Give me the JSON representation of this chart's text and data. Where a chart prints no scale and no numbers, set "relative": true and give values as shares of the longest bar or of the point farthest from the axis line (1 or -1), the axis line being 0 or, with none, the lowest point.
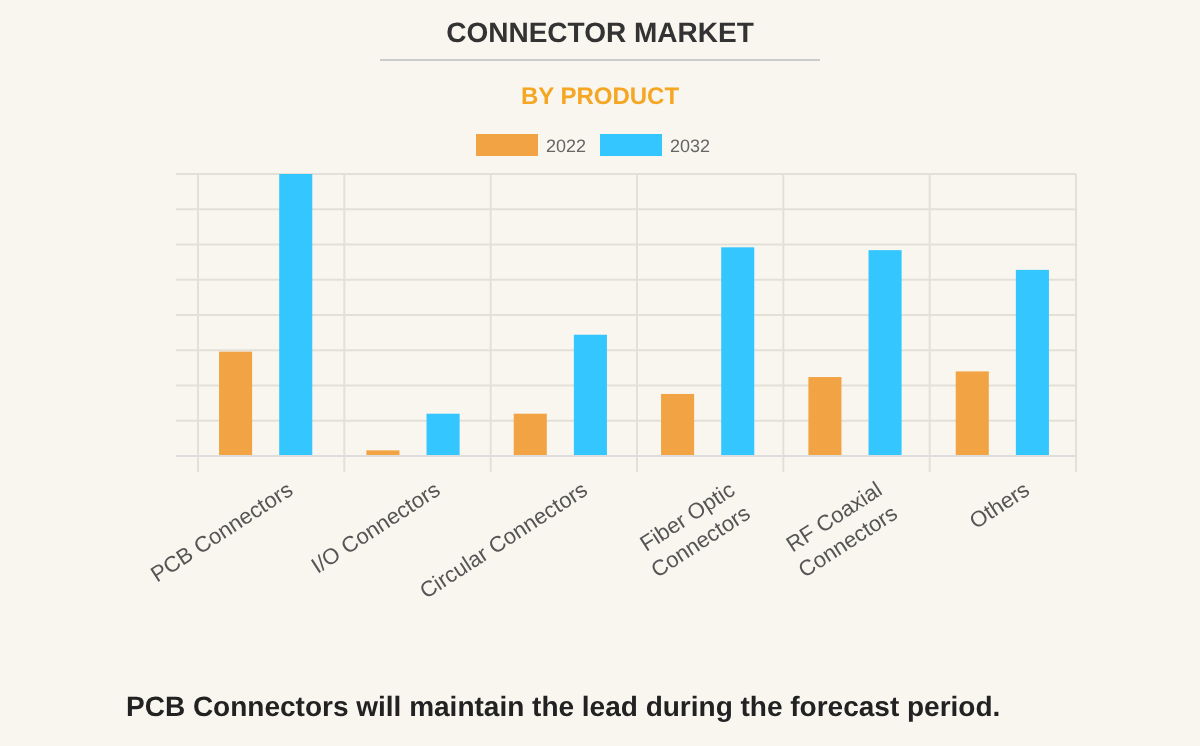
{
  "chart_data": {
    "type": "bar",
    "title": "CONNECTOR MARKET",
    "subtitle": "BY PRODUCT",
    "categories": [
      "PCB Connectors",
      "I/O Connectors",
      "Circular Connectors",
      "Fiber Optic Connectors",
      "RF Coaxial Connectors",
      "Others"
    ],
    "series": [
      {
        "name": "2022",
        "color": "#f2a444",
        "values": [
          0.37,
          0.02,
          0.15,
          0.22,
          0.28,
          0.3
        ]
      },
      {
        "name": "2032",
        "color": "#33c6ff",
        "values": [
          1,
          0.15,
          0.43,
          0.74,
          0.73,
          0.66
        ]
      }
    ],
    "relative": true,
    "grid": true,
    "legend": "top",
    "annotations": [
      "PCB Connectors will maintain the lead during the forecast period."
    ]
  }
}
